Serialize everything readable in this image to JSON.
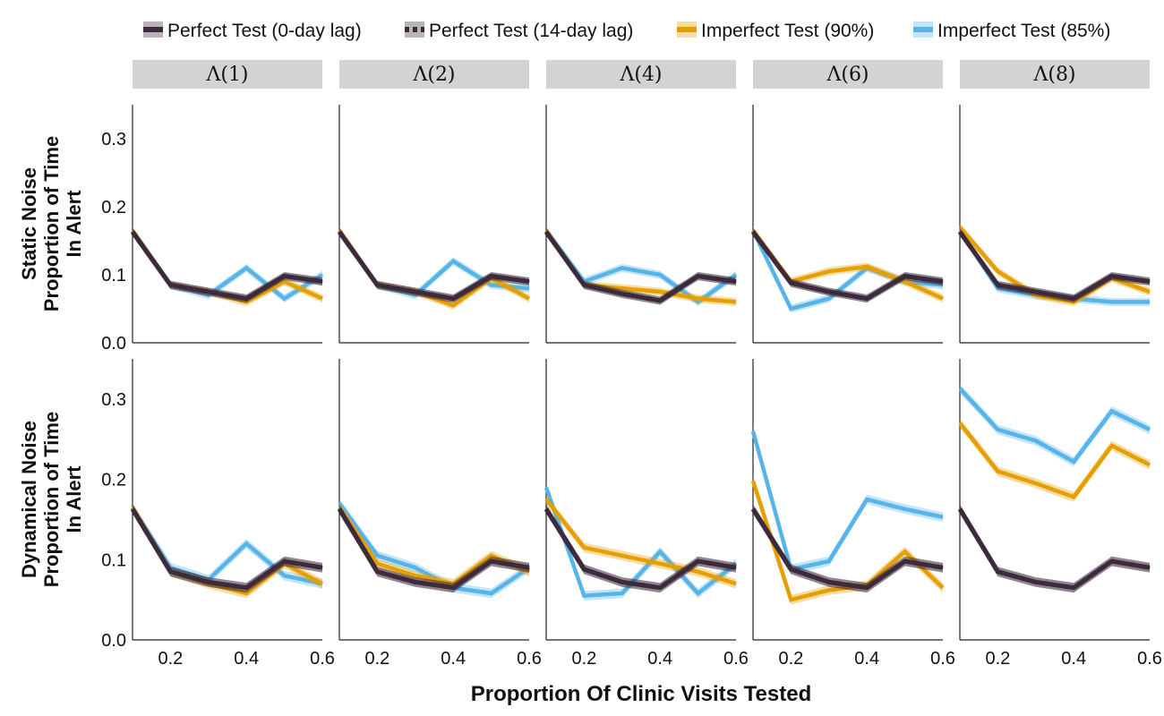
{
  "chart_data": {
    "type": "line",
    "xlabel": "Proportion Of Clinic Visits Tested",
    "x": [
      0.1,
      0.2,
      0.3,
      0.4,
      0.5,
      0.6
    ],
    "x_ticks": [
      "0.2",
      "0.4",
      "0.6"
    ],
    "y_ticks": [
      "0.0",
      "0.1",
      "0.2",
      "0.3"
    ],
    "ylim": [
      0,
      0.35
    ],
    "xlim": [
      0.1,
      0.6
    ],
    "columns": [
      "Λ(1)",
      "Λ(2)",
      "Λ(4)",
      "Λ(6)",
      "Λ(8)"
    ],
    "rows": [
      {
        "label_lines": [
          "Static Noise",
          "Proportion of Time",
          "In Alert"
        ]
      },
      {
        "label_lines": [
          "Dynamical Noise",
          "Proportion of Time",
          "In Alert"
        ]
      }
    ],
    "legend": [
      {
        "label": "Perfect Test (0-day lag)",
        "color": "#3d2a3d",
        "dashed": false
      },
      {
        "label": "Perfect Test (14-day lag)",
        "color": "#3d2a3d",
        "dashed": true
      },
      {
        "label": "Imperfect Test (90%)",
        "color": "#e69f00",
        "dashed": false
      },
      {
        "label": "Imperfect Test (85%)",
        "color": "#56b4e9",
        "dashed": false
      }
    ],
    "series_order": [
      "imperfect85",
      "imperfect90",
      "perfect14",
      "perfect0"
    ],
    "panels": [
      [
        {
          "imperfect85": [
            0.165,
            0.085,
            0.07,
            0.11,
            0.065,
            0.1
          ],
          "imperfect90": [
            0.165,
            0.085,
            0.075,
            0.06,
            0.09,
            0.065
          ],
          "perfect14": [
            0.163,
            0.085,
            0.075,
            0.065,
            0.098,
            0.09
          ],
          "perfect0": [
            0.163,
            0.085,
            0.075,
            0.065,
            0.098,
            0.09
          ]
        },
        {
          "imperfect85": [
            0.165,
            0.085,
            0.07,
            0.12,
            0.085,
            0.08
          ],
          "imperfect90": [
            0.165,
            0.085,
            0.075,
            0.055,
            0.095,
            0.065
          ],
          "perfect14": [
            0.163,
            0.085,
            0.075,
            0.065,
            0.098,
            0.09
          ],
          "perfect0": [
            0.163,
            0.085,
            0.075,
            0.065,
            0.098,
            0.09
          ]
        },
        {
          "imperfect85": [
            0.165,
            0.09,
            0.11,
            0.1,
            0.06,
            0.1
          ],
          "imperfect90": [
            0.165,
            0.085,
            0.08,
            0.075,
            0.065,
            0.06
          ],
          "perfect14": [
            0.163,
            0.085,
            0.072,
            0.062,
            0.098,
            0.09
          ],
          "perfect0": [
            0.163,
            0.085,
            0.072,
            0.062,
            0.098,
            0.09
          ]
        },
        {
          "imperfect85": [
            0.165,
            0.05,
            0.065,
            0.11,
            0.09,
            0.085
          ],
          "imperfect90": [
            0.165,
            0.09,
            0.105,
            0.112,
            0.09,
            0.065
          ],
          "perfect14": [
            0.163,
            0.088,
            0.075,
            0.065,
            0.098,
            0.09
          ],
          "perfect0": [
            0.163,
            0.088,
            0.075,
            0.065,
            0.098,
            0.09
          ]
        },
        {
          "imperfect85": [
            0.165,
            0.08,
            0.07,
            0.065,
            0.06,
            0.06
          ],
          "imperfect90": [
            0.17,
            0.105,
            0.07,
            0.06,
            0.095,
            0.075
          ],
          "perfect14": [
            0.163,
            0.085,
            0.075,
            0.065,
            0.098,
            0.09
          ],
          "perfect0": [
            0.163,
            0.085,
            0.075,
            0.065,
            0.098,
            0.09
          ]
        }
      ],
      [
        {
          "imperfect85": [
            0.165,
            0.09,
            0.075,
            0.12,
            0.08,
            0.07
          ],
          "imperfect90": [
            0.165,
            0.085,
            0.07,
            0.058,
            0.095,
            0.07
          ],
          "perfect14": [
            0.163,
            0.085,
            0.072,
            0.065,
            0.098,
            0.09
          ],
          "perfect0": [
            0.163,
            0.085,
            0.072,
            0.065,
            0.098,
            0.09
          ]
        },
        {
          "imperfect85": [
            0.17,
            0.105,
            0.09,
            0.065,
            0.058,
            0.09
          ],
          "imperfect90": [
            0.165,
            0.095,
            0.08,
            0.07,
            0.105,
            0.085
          ],
          "perfect14": [
            0.163,
            0.085,
            0.072,
            0.065,
            0.098,
            0.09
          ],
          "perfect0": [
            0.163,
            0.085,
            0.072,
            0.065,
            0.098,
            0.09
          ]
        },
        {
          "imperfect85": [
            0.19,
            0.055,
            0.058,
            0.11,
            0.058,
            0.095
          ],
          "imperfect90": [
            0.175,
            0.115,
            0.105,
            0.095,
            0.085,
            0.07
          ],
          "perfect14": [
            0.163,
            0.088,
            0.072,
            0.065,
            0.098,
            0.09
          ],
          "perfect0": [
            0.163,
            0.088,
            0.072,
            0.065,
            0.098,
            0.09
          ]
        },
        {
          "imperfect85": [
            0.26,
            0.088,
            0.098,
            0.175,
            0.163,
            0.153
          ],
          "imperfect90": [
            0.198,
            0.05,
            0.062,
            0.068,
            0.11,
            0.065
          ],
          "perfect14": [
            0.163,
            0.088,
            0.072,
            0.065,
            0.098,
            0.09
          ],
          "perfect0": [
            0.163,
            0.088,
            0.072,
            0.065,
            0.098,
            0.09
          ]
        },
        {
          "imperfect85": [
            0.313,
            0.262,
            0.248,
            0.222,
            0.285,
            0.262
          ],
          "imperfect90": [
            0.27,
            0.21,
            0.195,
            0.178,
            0.242,
            0.218
          ],
          "perfect14": [
            0.163,
            0.085,
            0.072,
            0.065,
            0.098,
            0.09
          ],
          "perfect0": [
            0.163,
            0.085,
            0.072,
            0.065,
            0.098,
            0.09
          ]
        }
      ]
    ]
  }
}
